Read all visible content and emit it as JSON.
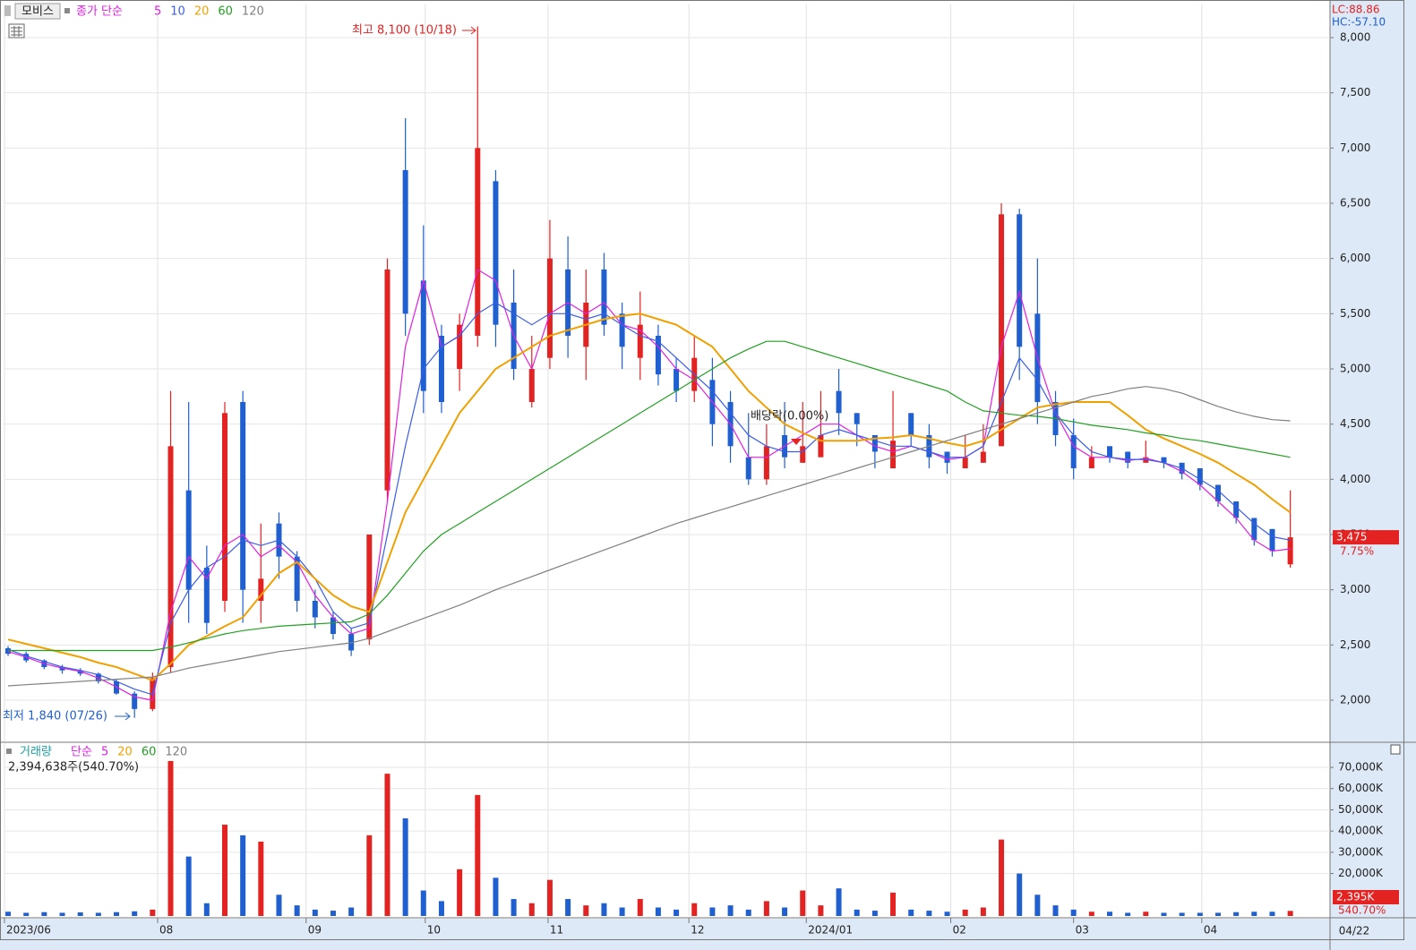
{
  "chart_data": [
    {
      "type": "candlestick",
      "stock_name": "모비스",
      "legend_title": "종가 단순",
      "up_color": "#e32222",
      "down_color": "#1f5fd0",
      "open": [
        2470,
        2420,
        2360,
        2300,
        2270,
        2240,
        2170,
        2060,
        1920,
        2300,
        3900,
        3200,
        2900,
        4700,
        2900,
        3600,
        3300,
        2900,
        2750,
        2600,
        2550,
        3900,
        6800,
        5800,
        5300,
        5000,
        5300,
        6700,
        5600,
        4700,
        5100,
        5900,
        5200,
        5900,
        5500,
        5100,
        5300,
        5000,
        4800,
        4900,
        4700,
        4200,
        4000,
        4400,
        4150,
        4200,
        4800,
        4600,
        4400,
        4100,
        4600,
        4400,
        4250,
        4100,
        4150,
        4300,
        6400,
        5500,
        4700,
        4400,
        4100,
        4300,
        4250,
        4150,
        4200,
        4150,
        4100,
        3950,
        3800,
        3650,
        3550,
        3230
      ],
      "high": [
        2490,
        2440,
        2370,
        2320,
        2290,
        2250,
        2190,
        2080,
        2250,
        4800,
        4700,
        3400,
        4700,
        4800,
        3600,
        3700,
        3350,
        3000,
        2800,
        2650,
        3500,
        6000,
        7270,
        6300,
        5400,
        5500,
        8100,
        6800,
        5900,
        5300,
        6350,
        6200,
        5900,
        6050,
        5600,
        5700,
        5400,
        5100,
        5300,
        5100,
        4800,
        4600,
        4500,
        4700,
        4700,
        4800,
        5000,
        4600,
        4400,
        4800,
        4600,
        4500,
        4250,
        4400,
        4500,
        6500,
        6450,
        6000,
        4800,
        4550,
        4300,
        4300,
        4250,
        4350,
        4200,
        4150,
        4100,
        3950,
        3800,
        3650,
        3550,
        3900
      ],
      "low": [
        2400,
        2340,
        2280,
        2240,
        2220,
        2150,
        2050,
        1840,
        1900,
        2250,
        2700,
        2600,
        2800,
        2700,
        2700,
        3100,
        2800,
        2650,
        2550,
        2400,
        2500,
        3800,
        5300,
        4600,
        4600,
        4800,
        5200,
        5200,
        4900,
        4650,
        5000,
        5100,
        4900,
        5300,
        5000,
        4900,
        4850,
        4700,
        4700,
        4300,
        4150,
        3950,
        3950,
        4100,
        4150,
        4200,
        4400,
        4300,
        4100,
        4100,
        4300,
        4100,
        4050,
        4100,
        4150,
        4300,
        4900,
        4500,
        4300,
        4000,
        4100,
        4150,
        4100,
        4150,
        4100,
        4000,
        3900,
        3750,
        3600,
        3400,
        3300,
        3200
      ],
      "close": [
        2420,
        2360,
        2300,
        2270,
        2240,
        2170,
        2060,
        1920,
        2200,
        4300,
        3000,
        2700,
        4600,
        3000,
        3100,
        3300,
        2900,
        2750,
        2600,
        2450,
        3500,
        5900,
        5500,
        4800,
        4700,
        5400,
        7000,
        5400,
        5000,
        5000,
        6000,
        5300,
        5600,
        5400,
        5200,
        5400,
        4950,
        4800,
        5100,
        4500,
        4300,
        4000,
        4300,
        4200,
        4300,
        4400,
        4600,
        4500,
        4250,
        4350,
        4400,
        4200,
        4150,
        4200,
        4250,
        6400,
        5200,
        4700,
        4400,
        4100,
        4200,
        4200,
        4150,
        4200,
        4150,
        4050,
        3950,
        3800,
        3650,
        3450,
        3350,
        3475
      ],
      "moving_averages": [
        {
          "name": "5",
          "color": "#e020e0",
          "values": [
            2440,
            2390,
            2330,
            2290,
            2260,
            2200,
            2120,
            2030,
            2000,
            2800,
            3300,
            3100,
            3400,
            3500,
            3300,
            3400,
            3250,
            2950,
            2750,
            2600,
            2650,
            3800,
            5200,
            5800,
            5200,
            5300,
            5900,
            5800,
            5300,
            5000,
            5500,
            5600,
            5500,
            5600,
            5400,
            5350,
            5200,
            5000,
            4900,
            4700,
            4500,
            4200,
            4200,
            4300,
            4400,
            4500,
            4500,
            4400,
            4300,
            4250,
            4300,
            4250,
            4180,
            4200,
            4300,
            5200,
            5700,
            5100,
            4600,
            4300,
            4200,
            4200,
            4170,
            4190,
            4150,
            4070,
            3950,
            3800,
            3650,
            3450,
            3350,
            3370
          ]
        },
        {
          "name": "10",
          "color": "#3a5de8",
          "values": [
            2460,
            2400,
            2350,
            2300,
            2270,
            2230,
            2170,
            2100,
            2050,
            2700,
            3000,
            3200,
            3300,
            3450,
            3400,
            3450,
            3300,
            3100,
            2800,
            2650,
            2700,
            3500,
            4300,
            5000,
            5200,
            5300,
            5500,
            5600,
            5500,
            5400,
            5500,
            5500,
            5450,
            5500,
            5400,
            5300,
            5250,
            5100,
            4950,
            4800,
            4600,
            4400,
            4300,
            4250,
            4250,
            4400,
            4450,
            4400,
            4350,
            4300,
            4300,
            4250,
            4200,
            4200,
            4300,
            4700,
            5100,
            4900,
            4600,
            4400,
            4250,
            4200,
            4180,
            4180,
            4150,
            4100,
            4000,
            3900,
            3750,
            3600,
            3480,
            3450
          ]
        },
        {
          "name": "20",
          "color": "#f0a000",
          "values": [
            2550,
            2510,
            2470,
            2430,
            2390,
            2340,
            2300,
            2240,
            2180,
            2330,
            2500,
            2580,
            2670,
            2750,
            2950,
            3150,
            3250,
            3100,
            2950,
            2850,
            2800,
            3250,
            3700,
            4000,
            4300,
            4600,
            4800,
            5000,
            5100,
            5200,
            5300,
            5350,
            5400,
            5450,
            5480,
            5500,
            5450,
            5400,
            5300,
            5200,
            5000,
            4800,
            4650,
            4500,
            4420,
            4350,
            4350,
            4350,
            4370,
            4380,
            4400,
            4370,
            4330,
            4300,
            4350,
            4450,
            4550,
            4650,
            4680,
            4700,
            4700,
            4700,
            4580,
            4450,
            4370,
            4300,
            4230,
            4150,
            4050,
            3950,
            3820,
            3700
          ]
        },
        {
          "name": "60",
          "color": "#22a022",
          "values": [
            2450,
            2450,
            2450,
            2450,
            2450,
            2450,
            2450,
            2450,
            2450,
            2480,
            2520,
            2560,
            2600,
            2630,
            2650,
            2670,
            2680,
            2690,
            2700,
            2710,
            2780,
            2950,
            3150,
            3350,
            3500,
            3600,
            3700,
            3800,
            3900,
            4000,
            4100,
            4200,
            4300,
            4400,
            4500,
            4600,
            4700,
            4800,
            4900,
            5000,
            5100,
            5180,
            5250,
            5250,
            5200,
            5150,
            5100,
            5050,
            5000,
            4950,
            4900,
            4850,
            4800,
            4700,
            4620,
            4600,
            4580,
            4570,
            4550,
            4520,
            4490,
            4470,
            4450,
            4420,
            4400,
            4370,
            4350,
            4320,
            4290,
            4260,
            4230,
            4200
          ]
        },
        {
          "name": "120",
          "color": "#808080",
          "values": [
            2130,
            2140,
            2150,
            2160,
            2170,
            2180,
            2190,
            2200,
            2210,
            2250,
            2290,
            2320,
            2350,
            2380,
            2410,
            2440,
            2460,
            2480,
            2500,
            2520,
            2560,
            2620,
            2680,
            2740,
            2800,
            2860,
            2930,
            3000,
            3060,
            3120,
            3180,
            3240,
            3300,
            3360,
            3420,
            3480,
            3540,
            3600,
            3650,
            3700,
            3750,
            3800,
            3850,
            3900,
            3950,
            4000,
            4050,
            4100,
            4150,
            4200,
            4250,
            4300,
            4350,
            4400,
            4450,
            4500,
            4550,
            4600,
            4650,
            4700,
            4750,
            4780,
            4820,
            4840,
            4820,
            4780,
            4720,
            4660,
            4610,
            4570,
            4540,
            4530
          ]
        }
      ],
      "xlim": [
        -0.2,
        73.2
      ],
      "xticks": [
        {
          "value": -0.2,
          "label": "2023/06"
        },
        {
          "value": 8.28,
          "label": "08"
        },
        {
          "value": 16.5,
          "label": "09"
        },
        {
          "value": 23.1,
          "label": "10"
        },
        {
          "value": 29.9,
          "label": "11"
        },
        {
          "value": 37.7,
          "label": "12"
        },
        {
          "value": 44.2,
          "label": "2024/01"
        },
        {
          "value": 52.2,
          "label": "02"
        },
        {
          "value": 59.0,
          "label": "03"
        },
        {
          "value": 66.1,
          "label": "04"
        }
      ],
      "last_date": "04/22",
      "ylim": [
        1627,
        8300
      ],
      "yticks": [
        {
          "value": 2000,
          "label": "2,000"
        },
        {
          "value": 2500,
          "label": "2,500"
        },
        {
          "value": 3000,
          "label": "3,000"
        },
        {
          "value": 3500,
          "label": "3,500"
        },
        {
          "value": 4000,
          "label": "4,000"
        },
        {
          "value": 4500,
          "label": "4,500"
        },
        {
          "value": 5000,
          "label": "5,000"
        },
        {
          "value": 5500,
          "label": "5,500"
        },
        {
          "value": 6000,
          "label": "6,000"
        },
        {
          "value": 6500,
          "label": "6,500"
        },
        {
          "value": 7000,
          "label": "7,000"
        },
        {
          "value": 7500,
          "label": "7,500"
        },
        {
          "value": 8000,
          "label": "8,000"
        }
      ],
      "grid": true,
      "high_label": "최고 8,100 (10/18)",
      "low_label": "최저 1,840 (07/26)",
      "event_label": "배당락(0.00%)",
      "lc_label": "LC:88.86",
      "hc_label": "HC:-57.10",
      "last_price": {
        "value": 3475,
        "label": "3,475"
      },
      "last_change": "7.75%"
    },
    {
      "type": "volume",
      "legend_name": "거래량",
      "legend_title": "단순",
      "ma_legend": [
        {
          "name": "5",
          "color": "#e020e0"
        },
        {
          "name": "20",
          "color": "#f0a000"
        },
        {
          "name": "60",
          "color": "#22a022"
        },
        {
          "name": "120",
          "color": "#808080"
        }
      ],
      "info": "2,394,638주(540.70%)",
      "values": [
        2000,
        1500,
        1800,
        1500,
        1700,
        1500,
        1800,
        2200,
        3000,
        73000,
        28000,
        6000,
        43000,
        38000,
        35000,
        10000,
        5000,
        3000,
        2500,
        4000,
        38000,
        67000,
        46000,
        12000,
        7000,
        22000,
        57000,
        18000,
        8000,
        6000,
        17000,
        8000,
        5000,
        6000,
        4000,
        8000,
        4000,
        3000,
        6000,
        4000,
        5000,
        3000,
        7000,
        4000,
        12000,
        5000,
        13000,
        3000,
        2500,
        11000,
        3000,
        2500,
        2000,
        3000,
        4000,
        36000,
        20000,
        10000,
        5000,
        3000,
        2000,
        2000,
        1500,
        2000,
        1500,
        1500,
        1500,
        1500,
        1800,
        2000,
        2000,
        2395
      ],
      "ylim": [
        0,
        81400
      ],
      "yticks": [
        {
          "value": 20000,
          "label": "20,000K"
        },
        {
          "value": 30000,
          "label": "30,000K"
        },
        {
          "value": 40000,
          "label": "40,000K"
        },
        {
          "value": 50000,
          "label": "50,000K"
        },
        {
          "value": 60000,
          "label": "60,000K"
        },
        {
          "value": 70000,
          "label": "70,000K"
        }
      ],
      "last_volume": {
        "value": 2395,
        "label": "2,395K"
      },
      "last_ratio": "540.70%"
    }
  ]
}
